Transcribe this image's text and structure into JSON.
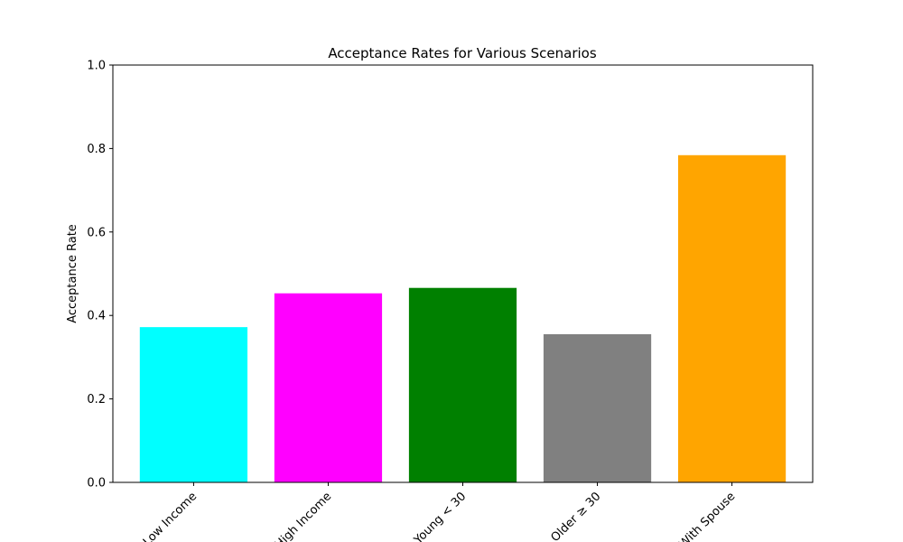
{
  "chart_data": {
    "type": "bar",
    "title": "Acceptance Rates for Various Scenarios",
    "xlabel": "",
    "ylabel": "Acceptance Rate",
    "categories": [
      "Low Income",
      "High Income",
      "Young < 30",
      "Older ≥ 30",
      "With Spouse"
    ],
    "values": [
      0.372,
      0.453,
      0.466,
      0.355,
      0.784
    ],
    "colors": [
      "#00ffff",
      "#ff00ff",
      "#008000",
      "#808080",
      "#ffa500"
    ],
    "ylim": [
      0,
      1.0
    ],
    "yticks": [
      "0.0",
      "0.2",
      "0.4",
      "0.6",
      "0.8",
      "1.0"
    ],
    "grid": false,
    "legend": "none"
  }
}
